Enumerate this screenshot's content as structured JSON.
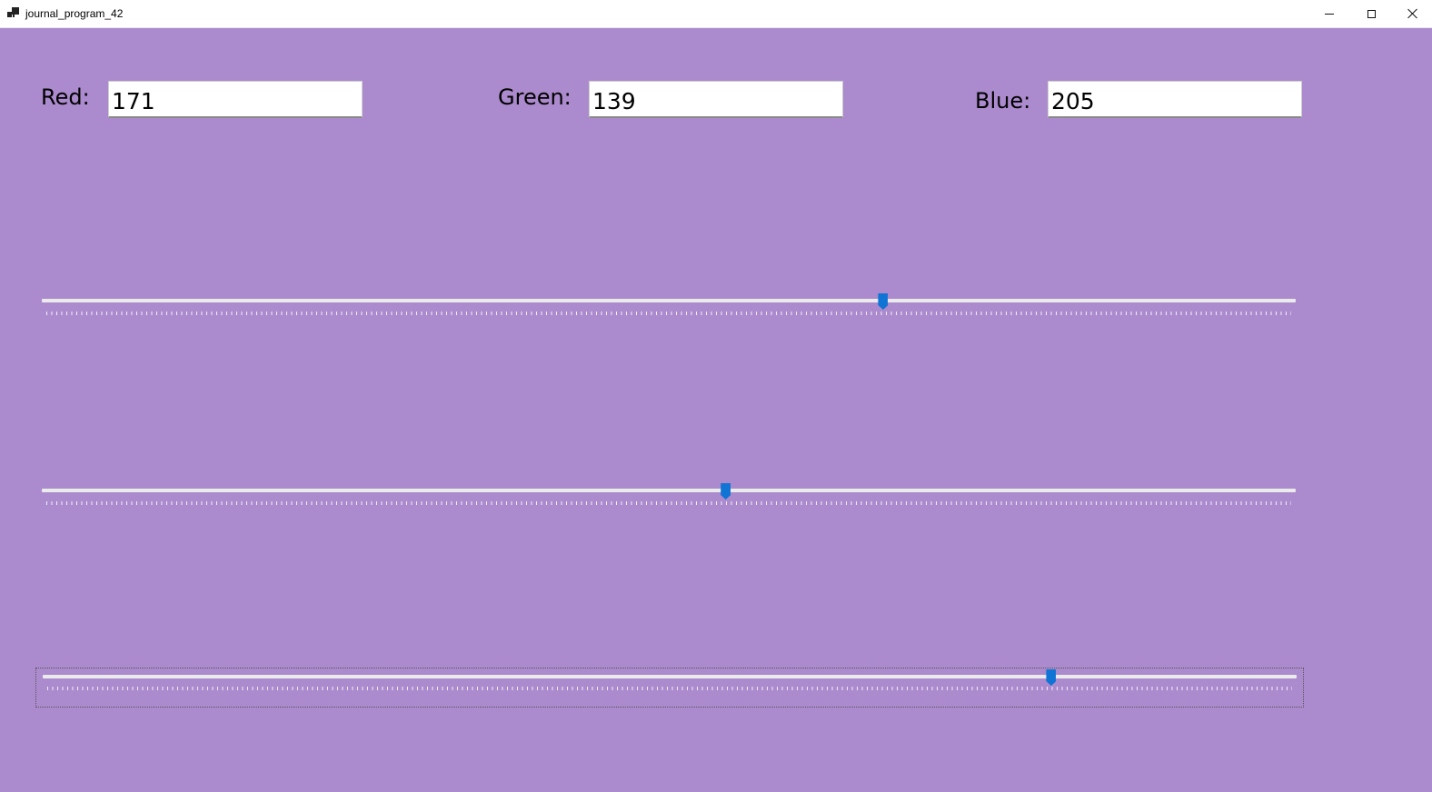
{
  "window": {
    "title": "journal_program_42",
    "icon": "app-window-icon",
    "controls": [
      "minimize-icon",
      "maximize-icon",
      "close-icon"
    ]
  },
  "background_color": "#ab8bcd",
  "fields": {
    "red": {
      "label": "Red:",
      "value": "171"
    },
    "green": {
      "label": "Green:",
      "value": "139"
    },
    "blue": {
      "label": "Blue:",
      "value": "205"
    }
  },
  "sliders": {
    "min": 0,
    "max": 255,
    "red": 171,
    "green": 139,
    "blue": 205,
    "thumb_color": "#0f74d4",
    "track_color": "#ebebeb"
  }
}
